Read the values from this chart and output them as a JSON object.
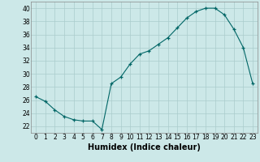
{
  "x": [
    0,
    1,
    2,
    3,
    4,
    5,
    6,
    7,
    8,
    9,
    10,
    11,
    12,
    13,
    14,
    15,
    16,
    17,
    18,
    19,
    20,
    21,
    22,
    23
  ],
  "y": [
    26.5,
    25.8,
    24.5,
    23.5,
    23.0,
    22.8,
    22.8,
    21.5,
    28.5,
    29.5,
    31.5,
    33.0,
    33.5,
    34.5,
    35.5,
    37.0,
    38.5,
    39.5,
    40.0,
    40.0,
    39.0,
    36.8,
    34.0,
    28.5
  ],
  "xlabel": "Humidex (Indice chaleur)",
  "xlim": [
    -0.5,
    23.5
  ],
  "ylim": [
    21,
    41
  ],
  "yticks": [
    22,
    24,
    26,
    28,
    30,
    32,
    34,
    36,
    38,
    40
  ],
  "xticks": [
    0,
    1,
    2,
    3,
    4,
    5,
    6,
    7,
    8,
    9,
    10,
    11,
    12,
    13,
    14,
    15,
    16,
    17,
    18,
    19,
    20,
    21,
    22,
    23
  ],
  "line_color": "#006666",
  "marker_color": "#006666",
  "bg_color": "#cce8e8",
  "grid_color": "#aacccc",
  "label_fontsize": 7,
  "tick_fontsize": 5.5
}
